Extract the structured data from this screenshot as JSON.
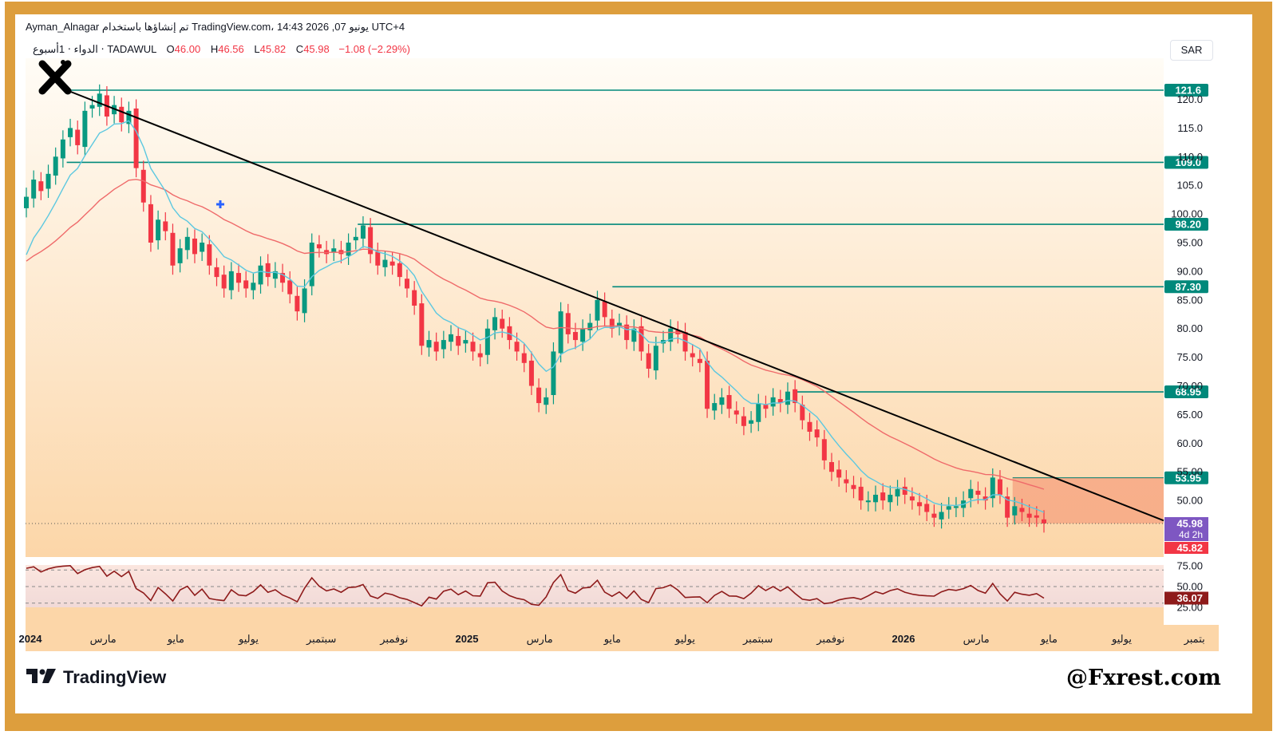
{
  "header": {
    "author": "Ayman_Alnagar",
    "published_text": "تم إنشاؤها باستخدام TradingView.com، يونيو 07, 2026 14:43 UTC+4"
  },
  "symbol_line": {
    "symbol": "الدواء ‧ 1أسبوع ‧ TADAWUL",
    "open_label": "O",
    "open": "46.00",
    "high_label": "H",
    "high": "46.56",
    "low_label": "L",
    "low": "45.82",
    "close_label": "C",
    "close": "45.98",
    "change": "−1.08 (−2.29%)"
  },
  "currency_button": "SAR",
  "footer": {
    "brand": "TradingView",
    "watermark": "@Fxrest.com"
  },
  "colors": {
    "frame": "#dd9e3d",
    "up": "#089981",
    "down": "#f23645",
    "level_line": "#00897b",
    "ema_fast": "#5cc8e0",
    "ema_slow": "#ef6a6a",
    "rsi": "#8e1b1b",
    "current_price_badge": "#7e57c2"
  },
  "chart_data": {
    "type": "candlestick",
    "interval": "1 week",
    "price_range": [
      44,
      123
    ],
    "price_ticks": [
      "120.0",
      "115.0",
      "110.0",
      "105.0",
      "100.00",
      "95.00",
      "90.00",
      "85.00",
      "80.00",
      "75.00",
      "70.00",
      "65.00",
      "60.00",
      "55.00",
      "50.00"
    ],
    "horizontal_levels": [
      {
        "value": 121.6,
        "label": "121.6",
        "start": "2024-02"
      },
      {
        "value": 109.0,
        "label": "109.0",
        "start": "2024-02"
      },
      {
        "value": 98.2,
        "label": "98.20",
        "start": "2024-10"
      },
      {
        "value": 87.3,
        "label": "87.30",
        "start": "2025-05"
      },
      {
        "value": 68.95,
        "label": "68.95",
        "start": "2025-10"
      },
      {
        "value": 53.95,
        "label": "53.95",
        "start": "2026-04"
      }
    ],
    "trendline": {
      "from": [
        "2024-02",
        121.6
      ],
      "to": [
        "2026-09",
        46.5
      ]
    },
    "current_price": {
      "value": "45.98",
      "countdown": "4d 2h",
      "low": "45.82"
    },
    "time_axis": [
      {
        "label": "2024",
        "date": "2024-01",
        "bold": true
      },
      {
        "label": "مارس",
        "date": "2024-03"
      },
      {
        "label": "مايو",
        "date": "2024-05"
      },
      {
        "label": "يوليو",
        "date": "2024-07"
      },
      {
        "label": "سبتمبر",
        "date": "2024-09"
      },
      {
        "label": "نوفمبر",
        "date": "2024-11"
      },
      {
        "label": "2025",
        "date": "2025-01",
        "bold": true
      },
      {
        "label": "مارس",
        "date": "2025-03"
      },
      {
        "label": "مايو",
        "date": "2025-05"
      },
      {
        "label": "يوليو",
        "date": "2025-07"
      },
      {
        "label": "سبتمبر",
        "date": "2025-09"
      },
      {
        "label": "نوفمبر",
        "date": "2025-11"
      },
      {
        "label": "2026",
        "date": "2026-01",
        "bold": true
      },
      {
        "label": "مارس",
        "date": "2026-03"
      },
      {
        "label": "مايو",
        "date": "2026-05"
      },
      {
        "label": "يوليو",
        "date": "2026-07"
      },
      {
        "label": "بتمبر",
        "date": "2026-09"
      }
    ],
    "candles_close": [
      103,
      106,
      104,
      107,
      110,
      113,
      115,
      112,
      118,
      119,
      121,
      117,
      119,
      116,
      118,
      108,
      102,
      95,
      99,
      97,
      91,
      94,
      96,
      93,
      95,
      91,
      89,
      87,
      90,
      88,
      87,
      88,
      91,
      89,
      90,
      88,
      86,
      83,
      87,
      95,
      94,
      93,
      94,
      93,
      95,
      96,
      98,
      93,
      91,
      92,
      91,
      89,
      87,
      84,
      77,
      78,
      76,
      78,
      79,
      77,
      78,
      76,
      75,
      80,
      82,
      80,
      78,
      76,
      74,
      70,
      67,
      68,
      76,
      83,
      79,
      78,
      80,
      81,
      85,
      82,
      80,
      81,
      78,
      80,
      76,
      73,
      77,
      78,
      80,
      79,
      76,
      75,
      74,
      66,
      67,
      68,
      66,
      65,
      63,
      64,
      67,
      66,
      68,
      67,
      69,
      67,
      64,
      62,
      61,
      57,
      55,
      54,
      53,
      52,
      50,
      50,
      51,
      50,
      51,
      52,
      51,
      50,
      49,
      48,
      47,
      48,
      49,
      49,
      50,
      52,
      51,
      50,
      54,
      51,
      47,
      49,
      48,
      47,
      47,
      46
    ],
    "ema_fast": {
      "start": 90,
      "end": 49.2
    },
    "ema_slow": {
      "start": 91,
      "end": 58.5
    },
    "rsi": {
      "ticks": [
        "75.00",
        "50.00",
        "25.00"
      ],
      "levels": [
        70,
        50,
        30
      ],
      "last": "36.07"
    }
  }
}
